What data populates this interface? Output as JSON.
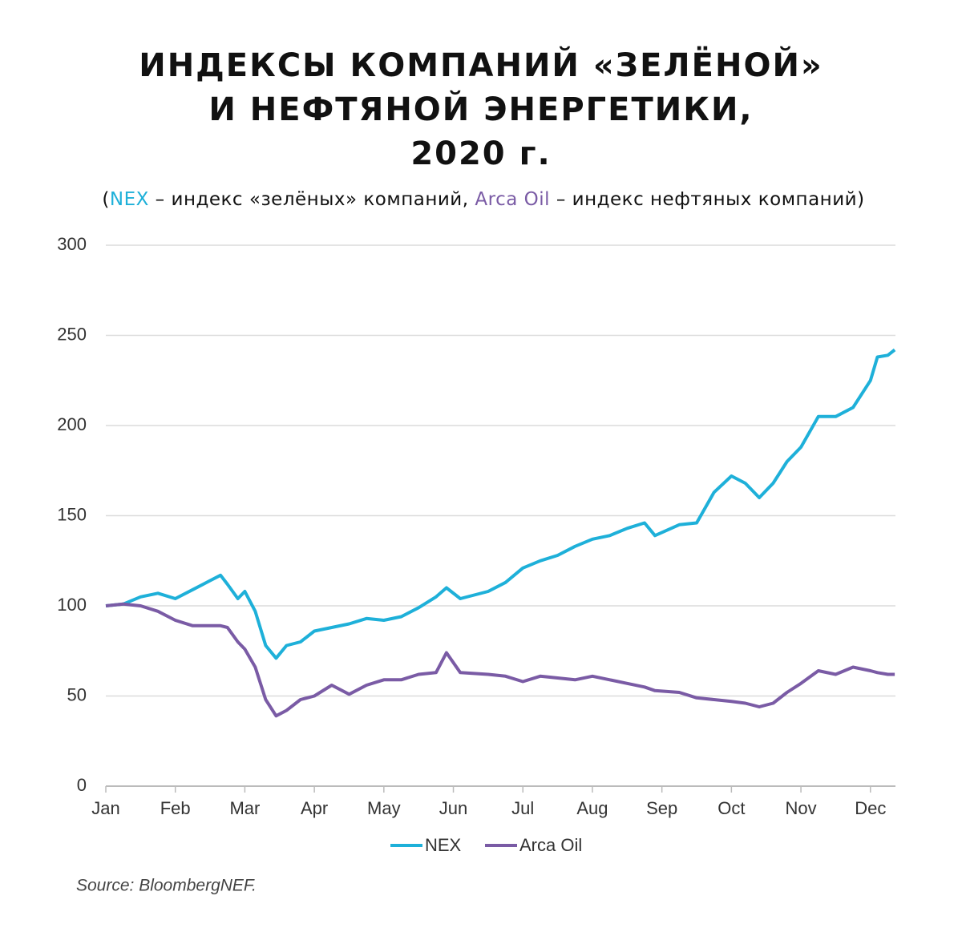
{
  "chart_data": {
    "type": "line",
    "title_lines": [
      "ИНДЕКСЫ КОМПАНИЙ «ЗЕЛЁНОЙ»",
      "И НЕФТЯНОЙ ЭНЕРГЕТИКИ,",
      "2020 г."
    ],
    "subtitle_parts": [
      "(",
      " – индекс «зелёных» компаний, ",
      " – индекс нефтяных компаний)"
    ],
    "source": "Source: BloombergNEF.",
    "x": [
      0,
      0.25,
      0.5,
      0.75,
      1,
      1.25,
      1.5,
      1.65,
      1.75,
      1.9,
      2,
      2.15,
      2.3,
      2.45,
      2.6,
      2.8,
      3,
      3.25,
      3.5,
      3.75,
      4,
      4.25,
      4.5,
      4.75,
      4.9,
      5.1,
      5.5,
      5.75,
      6,
      6.25,
      6.5,
      6.75,
      7,
      7.25,
      7.5,
      7.75,
      7.9,
      8.25,
      8.5,
      8.75,
      9,
      9.2,
      9.4,
      9.6,
      9.8,
      10,
      10.25,
      10.5,
      10.75,
      11,
      11.1,
      11.25,
      11.35
    ],
    "xlim": [
      0,
      11.36
    ],
    "xticks": [
      {
        "value": 0,
        "label": "Jan"
      },
      {
        "value": 1,
        "label": "Feb"
      },
      {
        "value": 2,
        "label": "Mar"
      },
      {
        "value": 3,
        "label": "Apr"
      },
      {
        "value": 4,
        "label": "May"
      },
      {
        "value": 5,
        "label": "Jun"
      },
      {
        "value": 6,
        "label": "Jul"
      },
      {
        "value": 7,
        "label": "Aug"
      },
      {
        "value": 8,
        "label": "Sep"
      },
      {
        "value": 9,
        "label": "Oct"
      },
      {
        "value": 10,
        "label": "Nov"
      },
      {
        "value": 11,
        "label": "Dec"
      }
    ],
    "ylim": [
      0,
      300
    ],
    "yticks": [
      0,
      50,
      100,
      150,
      200,
      250,
      300
    ],
    "grid": true,
    "legend": "bottom",
    "series": [
      {
        "name": "NEX",
        "color": "#1eb0d9",
        "values": [
          100,
          101,
          105,
          107,
          104,
          109,
          114,
          117,
          112,
          104,
          108,
          97,
          78,
          71,
          78,
          80,
          86,
          88,
          90,
          93,
          92,
          94,
          99,
          105,
          110,
          104,
          108,
          113,
          121,
          125,
          128,
          133,
          137,
          139,
          143,
          146,
          139,
          145,
          146,
          163,
          172,
          168,
          160,
          168,
          180,
          188,
          205,
          205,
          210,
          225,
          238,
          239,
          242
        ]
      },
      {
        "name": "Arca Oil",
        "color": "#7a5ba5",
        "values": [
          100,
          101,
          100,
          97,
          92,
          89,
          89,
          89,
          88,
          80,
          76,
          66,
          48,
          39,
          42,
          48,
          50,
          56,
          51,
          56,
          59,
          59,
          62,
          63,
          74,
          63,
          62,
          61,
          58,
          61,
          60,
          59,
          61,
          59,
          57,
          55,
          53,
          52,
          49,
          48,
          47,
          46,
          44,
          46,
          52,
          57,
          64,
          62,
          66,
          64,
          63,
          62,
          62
        ]
      }
    ]
  }
}
